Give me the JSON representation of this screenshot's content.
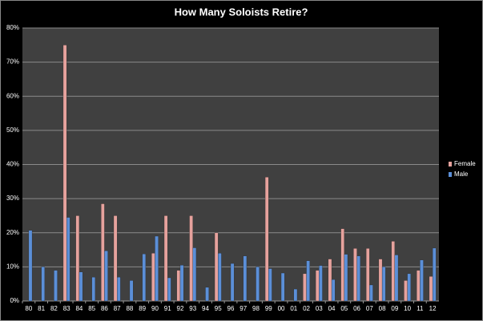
{
  "chart_data": {
    "type": "bar",
    "title": "How Many Soloists Retire?",
    "categories": [
      "80",
      "81",
      "82",
      "83",
      "84",
      "85",
      "86",
      "87",
      "88",
      "89",
      "90",
      "91",
      "92",
      "93",
      "94",
      "95",
      "96",
      "97",
      "98",
      "99",
      "00",
      "01",
      "02",
      "03",
      "04",
      "05",
      "06",
      "07",
      "08",
      "09",
      "10",
      "11",
      "12"
    ],
    "series": [
      {
        "name": "Female",
        "color": "#e6a29d",
        "values": [
          0,
          0,
          0,
          75,
          25,
          0,
          28.5,
          25,
          0,
          0,
          14,
          25,
          9,
          25,
          0,
          20,
          0,
          0,
          0,
          36.3,
          0,
          0,
          8,
          9,
          12.3,
          21.2,
          15.4,
          15.4,
          12.3,
          17.5,
          6,
          9,
          7.2
        ]
      },
      {
        "name": "Male",
        "color": "#5b8fd8",
        "values": [
          20.7,
          10,
          9,
          24.5,
          8.5,
          7,
          14.7,
          7,
          6,
          13.8,
          19,
          6.8,
          10.5,
          15.6,
          4,
          14,
          11,
          13.2,
          10,
          9.5,
          8.2,
          3.5,
          11.8,
          10.4,
          6.3,
          13.7,
          13.2,
          4.7,
          10,
          13.5,
          8,
          12,
          15.5
        ]
      }
    ],
    "ylim": [
      0,
      80
    ],
    "yticks": [
      {
        "value": 0,
        "label": "0%"
      },
      {
        "value": 10,
        "label": "10%"
      },
      {
        "value": 20,
        "label": "20%"
      },
      {
        "value": 30,
        "label": "30%"
      },
      {
        "value": 40,
        "label": "40%"
      },
      {
        "value": 50,
        "label": "50%"
      },
      {
        "value": 60,
        "label": "60%"
      },
      {
        "value": 70,
        "label": "70%"
      },
      {
        "value": 80,
        "label": "80%"
      }
    ],
    "grid": true,
    "legend": "right"
  }
}
